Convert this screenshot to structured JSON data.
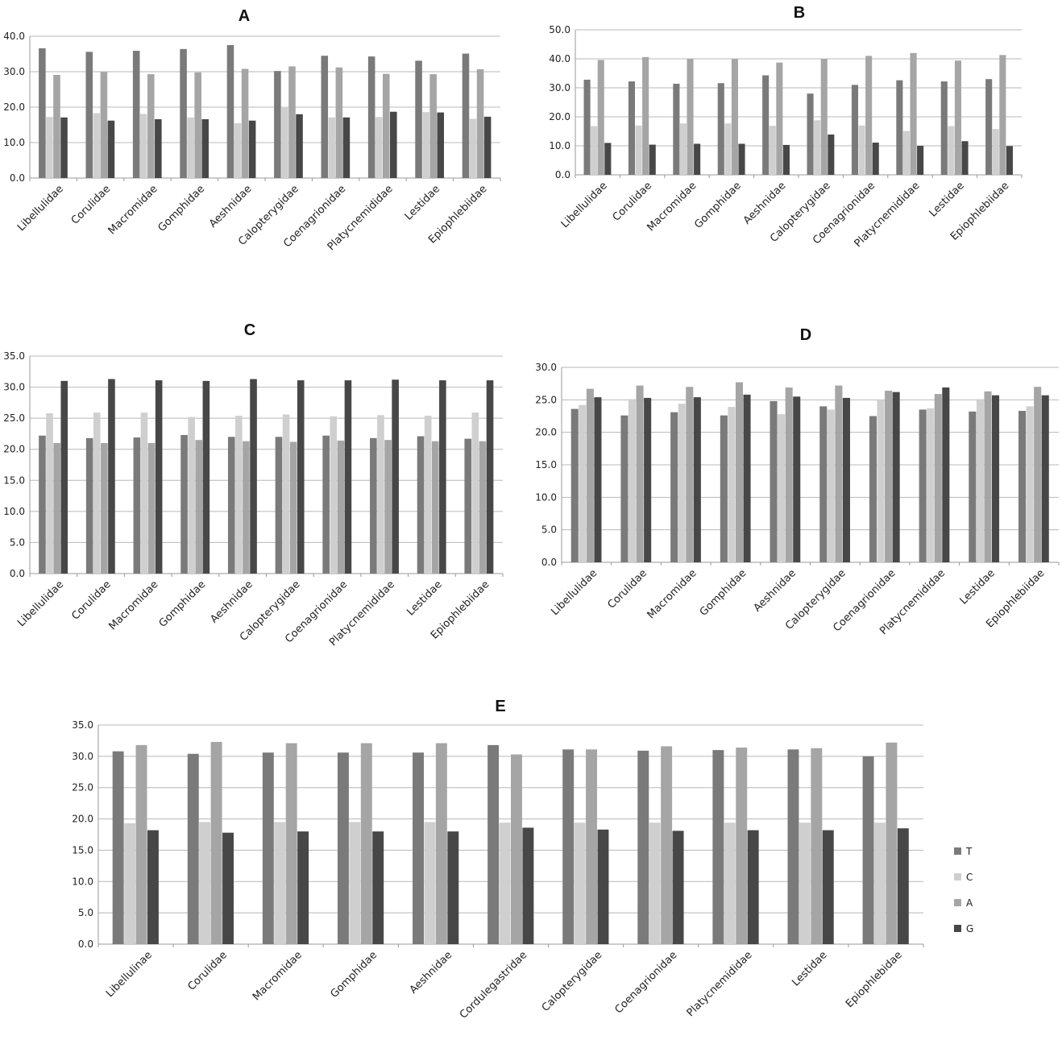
{
  "legend": [
    {
      "label": "T",
      "color": "#7a7a7a"
    },
    {
      "label": "C",
      "color": "#cfcfcf"
    },
    {
      "label": "A",
      "color": "#a5a5a5"
    },
    {
      "label": "G",
      "color": "#474747"
    }
  ],
  "chart_data": [
    {
      "type": "bar",
      "title": "A",
      "xlabel": "",
      "ylabel": "",
      "ylim": [
        0,
        40
      ],
      "yticks": [
        "0.0",
        "10.0",
        "20.0",
        "30.0",
        "40.0"
      ],
      "grid": true,
      "categories": [
        "Libellulidae",
        "Corulidae",
        "Macromidae",
        "Gomphidae",
        "Aeshnidae",
        "Calopterygidae",
        "Coenagrionidae",
        "Platycnemididae",
        "Lestidae",
        "Epiophlebiidae"
      ],
      "series": [
        {
          "name": "T",
          "values": [
            36.6,
            35.6,
            35.9,
            36.4,
            37.5,
            30.2,
            34.5,
            34.3,
            33.1,
            35.1
          ]
        },
        {
          "name": "C",
          "values": [
            17.2,
            18.3,
            18.1,
            17.1,
            15.5,
            20.1,
            17.1,
            17.2,
            18.6,
            16.7
          ]
        },
        {
          "name": "A",
          "values": [
            29.1,
            29.9,
            29.3,
            29.8,
            30.8,
            31.5,
            31.2,
            29.4,
            29.3,
            30.7
          ]
        },
        {
          "name": "G",
          "values": [
            17.1,
            16.2,
            16.6,
            16.6,
            16.2,
            18.0,
            17.1,
            18.7,
            18.5,
            17.3
          ]
        }
      ]
    },
    {
      "type": "bar",
      "title": "B",
      "xlabel": "",
      "ylabel": "",
      "ylim": [
        0,
        50
      ],
      "yticks": [
        "0.0",
        "10.0",
        "20.0",
        "30.0",
        "40.0",
        "50.0"
      ],
      "grid": true,
      "categories": [
        "Libellulidae",
        "Corulidae",
        "Macromidae",
        "Gomphidae",
        "Aeshnidae",
        "Calopterygidae",
        "Coenagrionidae",
        "Platycnemididae",
        "Lestidae",
        "Epiophlebiidae"
      ],
      "series": [
        {
          "name": "T",
          "values": [
            32.8,
            32.2,
            31.4,
            31.6,
            34.3,
            28.0,
            31.0,
            32.6,
            32.2,
            33.0
          ]
        },
        {
          "name": "C",
          "values": [
            16.8,
            17.0,
            17.7,
            17.7,
            16.9,
            18.8,
            17.0,
            15.1,
            16.8,
            15.8
          ]
        },
        {
          "name": "A",
          "values": [
            39.6,
            40.6,
            40.0,
            39.9,
            38.7,
            39.9,
            41.0,
            42.0,
            39.4,
            41.3
          ]
        },
        {
          "name": "G",
          "values": [
            11.0,
            10.4,
            10.7,
            10.7,
            10.3,
            13.9,
            11.1,
            10.0,
            11.6,
            9.9
          ]
        }
      ]
    },
    {
      "type": "bar",
      "title": "C",
      "xlabel": "",
      "ylabel": "",
      "ylim": [
        0,
        35
      ],
      "yticks": [
        "0.0",
        "5.0",
        "10.0",
        "15.0",
        "20.0",
        "25.0",
        "30.0",
        "35.0"
      ],
      "grid": true,
      "categories": [
        "Libellulidae",
        "Corulidae",
        "Macromidae",
        "Gomphidae",
        "Aeshnidae",
        "Calopterygidae",
        "Coenagrionidae",
        "Platycnemididae",
        "Lestidae",
        "Epiophlebiidae"
      ],
      "series": [
        {
          "name": "T",
          "values": [
            22.2,
            21.8,
            21.9,
            22.3,
            22.0,
            22.0,
            22.2,
            21.8,
            22.1,
            21.7
          ]
        },
        {
          "name": "C",
          "values": [
            25.8,
            25.9,
            25.9,
            25.2,
            25.4,
            25.6,
            25.3,
            25.5,
            25.4,
            25.9
          ]
        },
        {
          "name": "A",
          "values": [
            21.0,
            21.0,
            21.0,
            21.5,
            21.3,
            21.2,
            21.4,
            21.5,
            21.3,
            21.3
          ]
        },
        {
          "name": "G",
          "values": [
            31.0,
            31.3,
            31.1,
            31.0,
            31.3,
            31.1,
            31.1,
            31.2,
            31.1,
            31.1
          ]
        }
      ]
    },
    {
      "type": "bar",
      "title": "D",
      "xlabel": "",
      "ylabel": "",
      "ylim": [
        0,
        30
      ],
      "yticks": [
        "0.0",
        "5.0",
        "10.0",
        "15.0",
        "20.0",
        "25.0",
        "30.0"
      ],
      "grid": true,
      "categories": [
        "Libellulidae",
        "Corulidae",
        "Macromidae",
        "Gomphidae",
        "Aeshnidae",
        "Calopterygidae",
        "Coenagrionidae",
        "Platycnemididae",
        "Lestidae",
        "Epiophlebiidae"
      ],
      "series": [
        {
          "name": "T",
          "values": [
            23.6,
            22.6,
            23.1,
            22.6,
            24.8,
            24.0,
            22.5,
            23.5,
            23.2,
            23.3
          ]
        },
        {
          "name": "C",
          "values": [
            24.2,
            25.1,
            24.4,
            23.9,
            22.8,
            23.5,
            24.9,
            23.7,
            25.1,
            24.0
          ]
        },
        {
          "name": "A",
          "values": [
            26.7,
            27.2,
            27.0,
            27.7,
            26.9,
            27.2,
            26.4,
            25.9,
            26.3,
            27.0
          ]
        },
        {
          "name": "G",
          "values": [
            25.4,
            25.3,
            25.4,
            25.8,
            25.5,
            25.3,
            26.2,
            26.9,
            25.7,
            25.7
          ]
        }
      ]
    },
    {
      "type": "bar",
      "title": "E",
      "xlabel": "",
      "ylabel": "",
      "ylim": [
        0,
        35
      ],
      "yticks": [
        "0.0",
        "5.0",
        "10.0",
        "15.0",
        "20.0",
        "25.0",
        "30.0",
        "35.0"
      ],
      "grid": true,
      "legend_position": "right",
      "categories": [
        "Libellulinae",
        "Corulidae",
        "Macromidae",
        "Gomphidae",
        "Aeshnidae",
        "Cordulegastridae",
        "Calopterygidae",
        "Coenagrionidae",
        "Platycnemididae",
        "Lestidae",
        "Epiophlebidae"
      ],
      "series": [
        {
          "name": "T",
          "values": [
            30.8,
            30.4,
            30.6,
            30.6,
            30.6,
            31.8,
            31.1,
            30.9,
            31.0,
            31.1,
            30.0
          ]
        },
        {
          "name": "C",
          "values": [
            19.3,
            19.5,
            19.5,
            19.5,
            19.5,
            19.4,
            19.4,
            19.4,
            19.4,
            19.4,
            19.4
          ]
        },
        {
          "name": "A",
          "values": [
            31.8,
            32.3,
            32.1,
            32.1,
            32.1,
            30.3,
            31.1,
            31.6,
            31.4,
            31.3,
            32.2
          ]
        },
        {
          "name": "G",
          "values": [
            18.2,
            17.8,
            18.0,
            18.0,
            18.0,
            18.6,
            18.3,
            18.1,
            18.2,
            18.2,
            18.5
          ]
        }
      ]
    }
  ]
}
